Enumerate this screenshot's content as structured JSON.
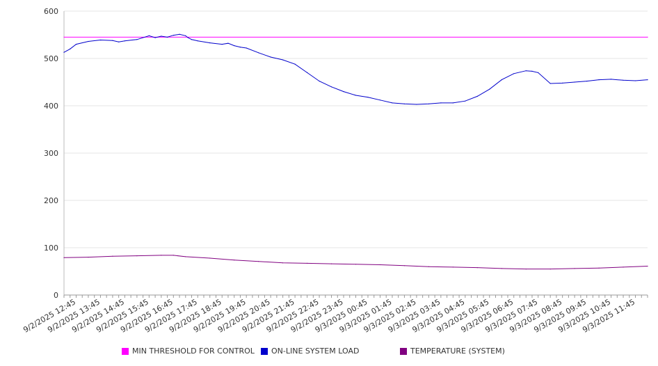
{
  "chart_data": {
    "type": "line",
    "title": "",
    "xlabel": "",
    "ylabel": "",
    "ylim": [
      0,
      600
    ],
    "y_ticks": [
      "0",
      "100",
      "200",
      "300",
      "400",
      "500",
      "600"
    ],
    "x_tick_labels": [
      "9/2/2025 12:45",
      "9/2/2025 13:45",
      "9/2/2025 14:45",
      "9/2/2025 15:45",
      "9/2/2025 16:45",
      "9/2/2025 17:45",
      "9/2/2025 18:45",
      "9/2/2025 19:45",
      "9/2/2025 20:45",
      "9/2/2025 21:45",
      "9/2/2025 22:45",
      "9/2/2025 23:45",
      "9/3/2025 00:45",
      "9/3/2025 01:45",
      "9/3/2025 02:45",
      "9/3/2025 03:45",
      "9/3/2025 04:45",
      "9/3/2025 05:45",
      "9/3/2025 06:45",
      "9/3/2025 07:45",
      "9/3/2025 08:45",
      "9/3/2025 09:45",
      "9/3/2025 10:45",
      "9/3/2025 11:45"
    ],
    "x_range_hours": [
      0,
      24
    ],
    "grid": "horizontal",
    "legend_position": "bottom",
    "series": [
      {
        "name": "MIN THRESHOLD FOR CONTROL",
        "color": "#ff00ff",
        "x_hours": [
          0,
          24
        ],
        "values": [
          545,
          545
        ]
      },
      {
        "name": "ON-LINE SYSTEM LOAD",
        "color": "#0000cc",
        "x_hours": [
          0,
          0.25,
          0.5,
          1,
          1.5,
          2,
          2.25,
          2.5,
          3,
          3.5,
          3.75,
          4,
          4.25,
          4.5,
          4.75,
          5,
          5.1,
          5.25,
          5.5,
          6,
          6.5,
          6.75,
          7,
          7.25,
          7.5,
          8,
          8.5,
          9,
          9.5,
          10,
          10.5,
          11,
          11.5,
          12,
          12.5,
          13,
          13.5,
          14,
          14.5,
          15,
          15.5,
          16,
          16.5,
          17,
          17.5,
          18,
          18.5,
          19,
          19.25,
          19.5,
          20,
          20.5,
          21,
          21.5,
          22,
          22.5,
          23,
          23.5,
          24
        ],
        "values": [
          513,
          520,
          530,
          536,
          539,
          538,
          535,
          537,
          540,
          548,
          544,
          547,
          545,
          549,
          551,
          548,
          544,
          540,
          537,
          533,
          530,
          532,
          527,
          524,
          522,
          512,
          503,
          497,
          488,
          470,
          452,
          440,
          430,
          422,
          418,
          412,
          406,
          404,
          403,
          404,
          406,
          406,
          410,
          420,
          435,
          455,
          468,
          474,
          473,
          470,
          447,
          448,
          450,
          452,
          455,
          456,
          454,
          453,
          455
        ]
      },
      {
        "name": "TEMPERATURE (SYSTEM)",
        "color": "#800080",
        "x_hours": [
          0,
          1,
          2,
          3,
          4,
          4.5,
          5,
          6,
          7,
          8,
          9,
          10,
          11,
          12,
          13,
          14,
          15,
          16,
          17,
          18,
          19,
          20,
          21,
          22,
          23,
          24
        ],
        "values": [
          79,
          80,
          82,
          83,
          84,
          84,
          81,
          78,
          74,
          71,
          68,
          67,
          66,
          65,
          64,
          62,
          60,
          59,
          58,
          56,
          55,
          55,
          56,
          57,
          59,
          61
        ]
      }
    ]
  }
}
